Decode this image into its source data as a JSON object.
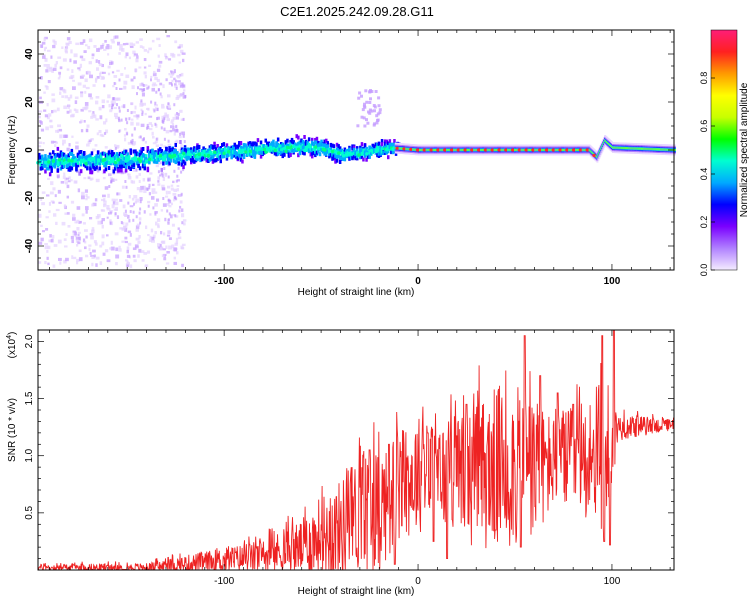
{
  "title": "C2E1.2025.242.09.28.G11",
  "chart_data": [
    {
      "type": "heatmap",
      "xlabel": "Height of straight line (km)",
      "ylabel": "Frequency (Hz)",
      "xlim": [
        -196,
        132
      ],
      "ylim": [
        -50,
        50
      ],
      "xticks": [
        -100,
        0,
        100
      ],
      "yticks": [
        -40,
        -20,
        0,
        20,
        40
      ],
      "grid": false,
      "colorbar": {
        "label": "Normalized spectral amplitude",
        "range": [
          0,
          1
        ],
        "ticks": [
          "0.0",
          "0.2",
          "0.4",
          "0.6",
          "0.8"
        ],
        "colors": [
          "#f4ecff",
          "#b080ff",
          "#7a00ff",
          "#0000ff",
          "#00aaff",
          "#00ffd0",
          "#00ff00",
          "#c8ff00",
          "#ffff00",
          "#ff9a00",
          "#ff2020",
          "#ff1e78"
        ]
      },
      "ridge": [
        {
          "x": -196,
          "y": -5
        },
        {
          "x": -150,
          "y": -4
        },
        {
          "x": -100,
          "y": -1
        },
        {
          "x": -70,
          "y": 1
        },
        {
          "x": -50,
          "y": 1
        },
        {
          "x": -40,
          "y": -2
        },
        {
          "x": -30,
          "y": -1
        },
        {
          "x": -20,
          "y": 0
        },
        {
          "x": -15,
          "y": 1
        },
        {
          "x": 0,
          "y": 0
        },
        {
          "x": 50,
          "y": 0
        },
        {
          "x": 88,
          "y": 0
        },
        {
          "x": 92,
          "y": -3
        },
        {
          "x": 96,
          "y": 4
        },
        {
          "x": 100,
          "y": 1
        },
        {
          "x": 132,
          "y": 0
        }
      ]
    },
    {
      "type": "line",
      "xlabel": "Height of straight line (km)",
      "ylabel": "SNR (10 * v/v)",
      "y_multiplier": "(x10",
      "y_multiplier_exp": "4",
      "y_multiplier_close": ")",
      "xlim": [
        -196,
        132
      ],
      "ylim": [
        0,
        2.1
      ],
      "xticks": [
        -100,
        0,
        100
      ],
      "yticks": [
        "0.5",
        "1.0",
        "1.5",
        "2.0"
      ],
      "grid": false,
      "color": "#ee2222",
      "envelope": [
        {
          "x": -196,
          "base": 0.02,
          "amp": 0.04
        },
        {
          "x": -140,
          "base": 0.02,
          "amp": 0.05
        },
        {
          "x": -120,
          "base": 0.05,
          "amp": 0.1
        },
        {
          "x": -80,
          "base": 0.12,
          "amp": 0.18
        },
        {
          "x": -60,
          "base": 0.2,
          "amp": 0.3
        },
        {
          "x": -50,
          "base": 0.3,
          "amp": 0.45
        },
        {
          "x": -40,
          "base": 0.35,
          "amp": 0.55
        },
        {
          "x": -30,
          "base": 0.5,
          "amp": 0.65
        },
        {
          "x": -20,
          "base": 0.55,
          "amp": 0.7
        },
        {
          "x": -10,
          "base": 0.7,
          "amp": 0.6
        },
        {
          "x": 0,
          "base": 0.85,
          "amp": 0.65
        },
        {
          "x": 10,
          "base": 0.8,
          "amp": 0.6
        },
        {
          "x": 20,
          "base": 0.85,
          "amp": 0.6
        },
        {
          "x": 30,
          "base": 0.8,
          "amp": 0.8
        },
        {
          "x": 40,
          "base": 0.9,
          "amp": 0.9
        },
        {
          "x": 50,
          "base": 0.9,
          "amp": 0.9
        },
        {
          "x": 60,
          "base": 0.85,
          "amp": 0.8
        },
        {
          "x": 70,
          "base": 0.95,
          "amp": 0.5
        },
        {
          "x": 80,
          "base": 0.95,
          "amp": 0.6
        },
        {
          "x": 90,
          "base": 1.0,
          "amp": 0.7
        },
        {
          "x": 98,
          "base": 1.0,
          "amp": 0.9
        },
        {
          "x": 103,
          "base": 1.25,
          "amp": 0.15
        },
        {
          "x": 132,
          "base": 1.27,
          "amp": 0.06
        }
      ],
      "spikes": [
        {
          "x": -25,
          "y": 1.05
        },
        {
          "x": -15,
          "y": 1.1
        },
        {
          "x": 5,
          "y": 1.2
        },
        {
          "x": 25,
          "y": 1.45
        },
        {
          "x": 40,
          "y": 1.85
        },
        {
          "x": 55,
          "y": 2.05
        },
        {
          "x": 63,
          "y": 1.7
        },
        {
          "x": 72,
          "y": 1.55
        },
        {
          "x": 80,
          "y": 1.45
        },
        {
          "x": 95,
          "y": 2.05
        },
        {
          "x": 101,
          "y": 2.1
        }
      ],
      "dips": [
        {
          "x": -12,
          "y": 0.05
        },
        {
          "x": 8,
          "y": 0.25
        },
        {
          "x": 15,
          "y": 0.1
        },
        {
          "x": 40,
          "y": 0.35
        },
        {
          "x": 53,
          "y": 0.2
        },
        {
          "x": 96,
          "y": 0.25
        },
        {
          "x": 99,
          "y": 0.22
        }
      ]
    }
  ]
}
